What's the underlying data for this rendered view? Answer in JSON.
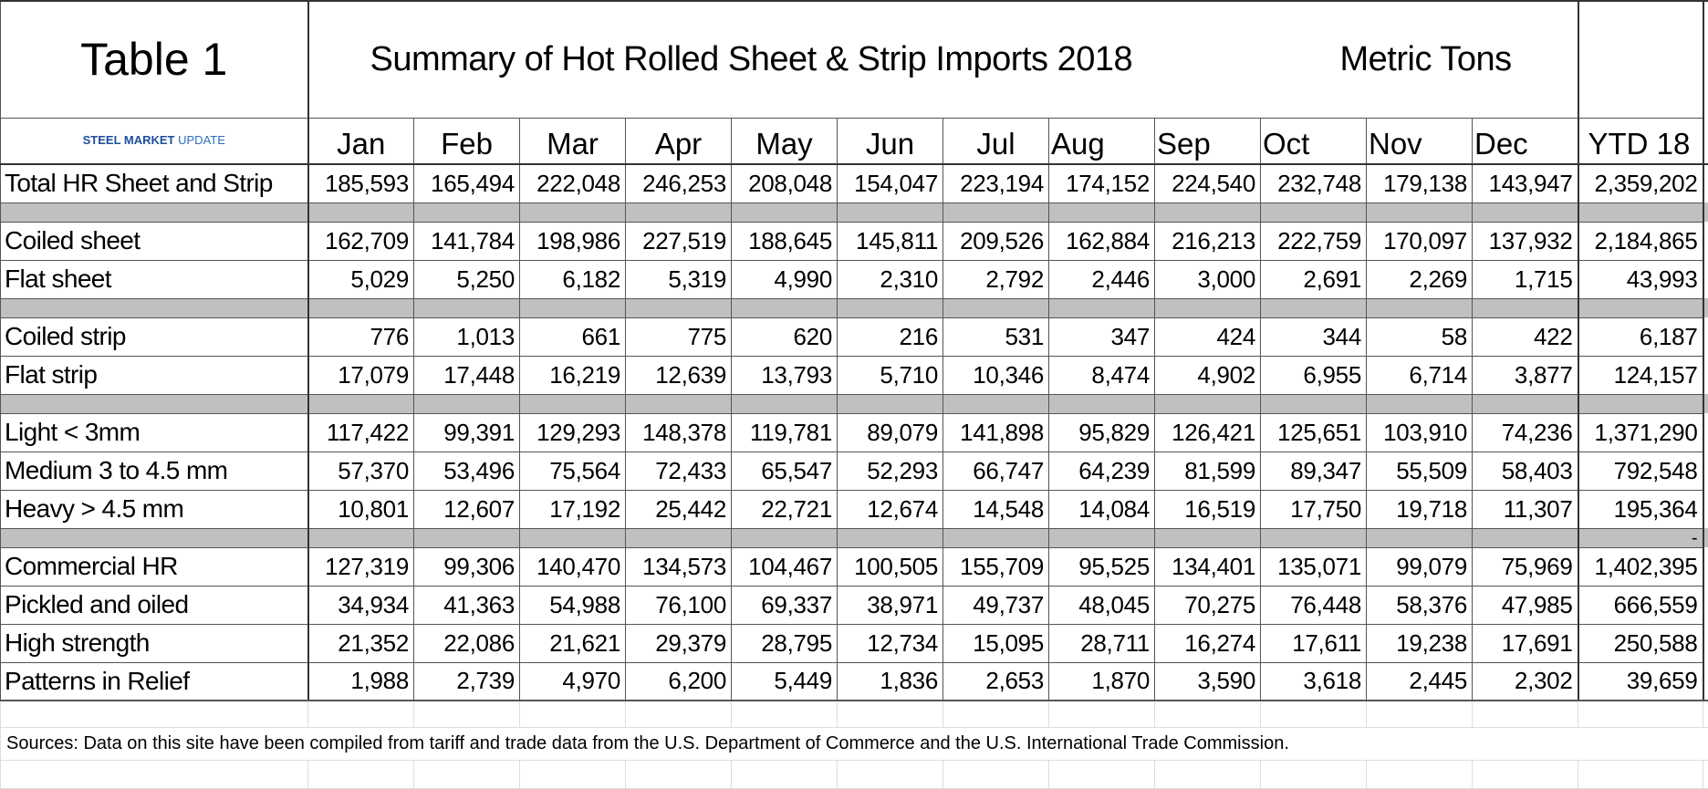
{
  "header": {
    "table_label": "Table 1",
    "title": "Summary of Hot Rolled Sheet & Strip Imports 2018",
    "units": "Metric Tons",
    "logo": {
      "brand": "STEEL MARKET",
      "suffix": "UPDATE"
    }
  },
  "table": {
    "columns": [
      "Jan",
      "Feb",
      "Mar",
      "Apr",
      "May",
      "Jun",
      "Jul",
      "Aug",
      "Sep",
      "Oct",
      "Nov",
      "Dec",
      "YTD 18"
    ],
    "groups": [
      {
        "rows": [
          {
            "label": "Total HR Sheet and Strip",
            "values": [
              "185,593",
              "165,494",
              "222,048",
              "246,253",
              "208,048",
              "154,047",
              "223,194",
              "174,152",
              "224,540",
              "232,748",
              "179,138",
              "143,947",
              "2,359,202"
            ]
          }
        ]
      },
      {
        "rows": [
          {
            "label": "Coiled sheet",
            "values": [
              "162,709",
              "141,784",
              "198,986",
              "227,519",
              "188,645",
              "145,811",
              "209,526",
              "162,884",
              "216,213",
              "222,759",
              "170,097",
              "137,932",
              "2,184,865"
            ]
          },
          {
            "label": "Flat sheet",
            "values": [
              "5,029",
              "5,250",
              "6,182",
              "5,319",
              "4,990",
              "2,310",
              "2,792",
              "2,446",
              "3,000",
              "2,691",
              "2,269",
              "1,715",
              "43,993"
            ]
          }
        ]
      },
      {
        "rows": [
          {
            "label": "Coiled strip",
            "values": [
              "776",
              "1,013",
              "661",
              "775",
              "620",
              "216",
              "531",
              "347",
              "424",
              "344",
              "58",
              "422",
              "6,187"
            ]
          },
          {
            "label": "Flat strip",
            "values": [
              "17,079",
              "17,448",
              "16,219",
              "12,639",
              "13,793",
              "5,710",
              "10,346",
              "8,474",
              "4,902",
              "6,955",
              "6,714",
              "3,877",
              "124,157"
            ]
          }
        ]
      },
      {
        "rows": [
          {
            "label": "Light < 3mm",
            "values": [
              "117,422",
              "99,391",
              "129,293",
              "148,378",
              "119,781",
              "89,079",
              "141,898",
              "95,829",
              "126,421",
              "125,651",
              "103,910",
              "74,236",
              "1,371,290"
            ]
          },
          {
            "label": "Medium 3 to 4.5 mm",
            "values": [
              "57,370",
              "53,496",
              "75,564",
              "72,433",
              "65,547",
              "52,293",
              "66,747",
              "64,239",
              "81,599",
              "89,347",
              "55,509",
              "58,403",
              "792,548"
            ]
          },
          {
            "label": "Heavy > 4.5 mm",
            "values": [
              "10,801",
              "12,607",
              "17,192",
              "25,442",
              "22,721",
              "12,674",
              "14,548",
              "14,084",
              "16,519",
              "17,750",
              "19,718",
              "11,307",
              "195,364"
            ]
          }
        ],
        "separator_note": "-"
      },
      {
        "rows": [
          {
            "label": "Commercial HR",
            "values": [
              "127,319",
              "99,306",
              "140,470",
              "134,573",
              "104,467",
              "100,505",
              "155,709",
              "95,525",
              "134,401",
              "135,071",
              "99,079",
              "75,969",
              "1,402,395"
            ]
          },
          {
            "label": "Pickled and oiled",
            "values": [
              "34,934",
              "41,363",
              "54,988",
              "76,100",
              "69,337",
              "38,971",
              "49,737",
              "48,045",
              "70,275",
              "76,448",
              "58,376",
              "47,985",
              "666,559"
            ]
          },
          {
            "label": "High strength",
            "values": [
              "21,352",
              "22,086",
              "21,621",
              "29,379",
              "28,795",
              "12,734",
              "15,095",
              "28,711",
              "16,274",
              "17,611",
              "19,238",
              "17,691",
              "250,588"
            ]
          },
          {
            "label": "Patterns in Relief",
            "values": [
              "1,988",
              "2,739",
              "4,970",
              "6,200",
              "5,449",
              "1,836",
              "2,653",
              "1,870",
              "3,590",
              "3,618",
              "2,445",
              "2,302",
              "39,659"
            ]
          }
        ]
      }
    ]
  },
  "footer": {
    "sources": "Sources: Data on this site have been compiled from tariff and trade data from the U.S. Department of Commerce and the U.S. International Trade Commission."
  }
}
